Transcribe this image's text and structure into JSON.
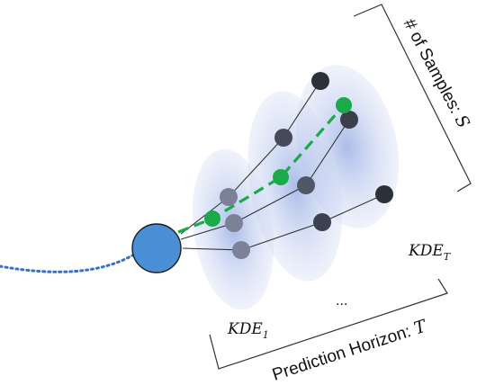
{
  "labels": {
    "kde_first_base": "KDE",
    "kde_first_sub": "1",
    "kde_last_base": "KDE",
    "kde_last_sub": "T",
    "ellipsis": "...",
    "samples_text": "# of Samples: ",
    "samples_var": "S",
    "horizon_text": "Prediction Horizon: ",
    "horizon_var": "T"
  },
  "colors": {
    "kde_blob": "#8fa6e0",
    "agent_fill": "#4a8fd6",
    "agent_stroke": "#1f1f1f",
    "history_path": "#3a6fc4",
    "highlight_path": "#1aaa4a",
    "node_light": "#7b8298",
    "node_mid": "#4f5668",
    "node_dark": "#2c3038",
    "edge": "#333333",
    "bracket": "#333333"
  }
}
